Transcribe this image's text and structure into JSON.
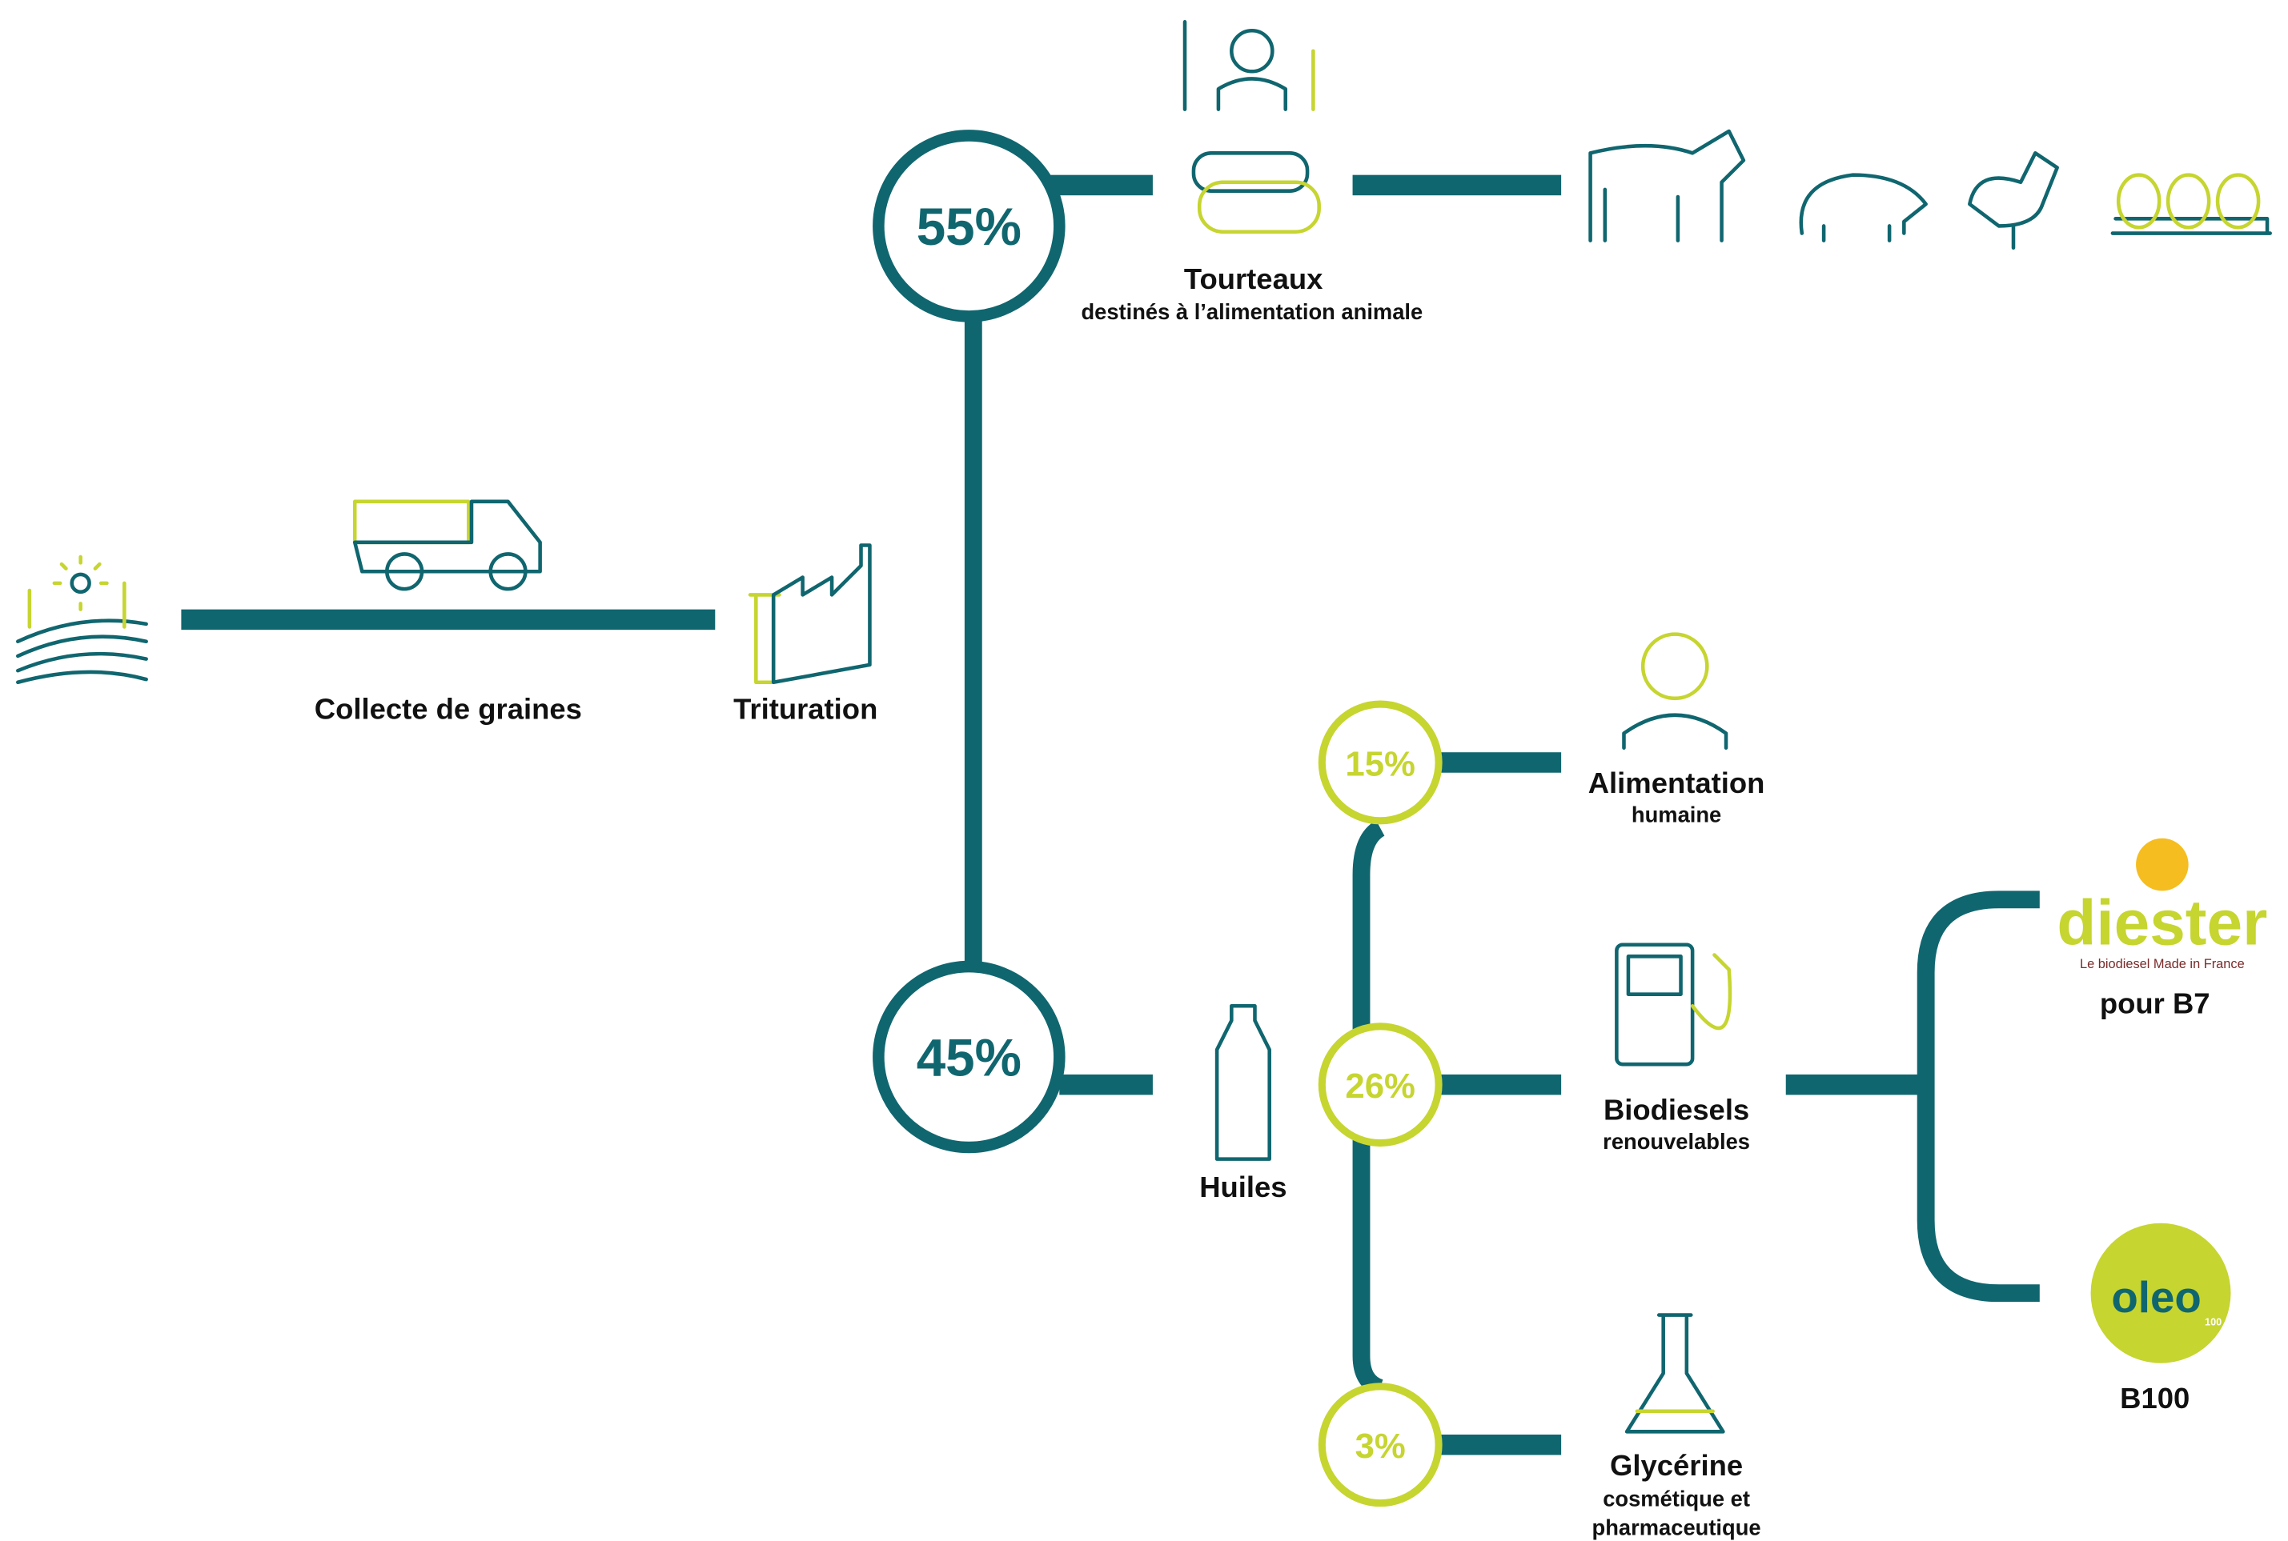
{
  "steps": [
    {
      "label": "Collecte de graines"
    },
    {
      "label": "Trituration"
    }
  ],
  "outputs": [
    {
      "percent": "55%",
      "label": "Tourteaux",
      "sublabel": [
        "destinés à l’alimentation animale"
      ]
    },
    {
      "percent": "45%",
      "label": "Huiles",
      "sublabel": []
    }
  ],
  "uses": [
    {
      "percent": "15%",
      "label": "Alimentation",
      "sublabel": [
        "humaine"
      ]
    },
    {
      "percent": "26%",
      "label": "Biodiesels",
      "sublabel": [
        "renouvelables"
      ]
    },
    {
      "percent": "3%",
      "label": "Glycérine",
      "sublabel": [
        "cosmétique et",
        "pharmaceutique"
      ]
    }
  ],
  "brands": [
    {
      "logo": "diester",
      "tagline": "Le biodiesel Made in France",
      "label": "pour B7"
    },
    {
      "logo": "oleo",
      "logo_sub": "100",
      "label": "B100"
    }
  ]
}
